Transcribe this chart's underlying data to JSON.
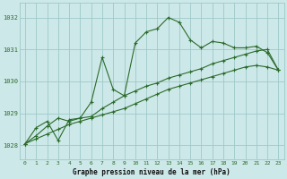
{
  "bg_color": "#cde8e8",
  "grid_color": "#9ec8c8",
  "line_color": "#2a6b2a",
  "title": "Graphe pression niveau de la mer (hPa)",
  "xlim": [
    -0.5,
    23.5
  ],
  "ylim": [
    1027.55,
    1032.45
  ],
  "yticks": [
    1028,
    1029,
    1030,
    1031,
    1032
  ],
  "xticks": [
    0,
    1,
    2,
    3,
    4,
    5,
    6,
    7,
    8,
    9,
    10,
    11,
    12,
    13,
    14,
    15,
    16,
    17,
    18,
    19,
    20,
    21,
    22,
    23
  ],
  "series1_x": [
    0,
    1,
    2,
    3,
    4,
    5,
    6,
    7,
    8,
    9,
    10,
    11,
    12,
    13,
    14,
    15,
    16,
    17,
    18,
    19,
    20,
    21,
    22,
    23
  ],
  "series1_y": [
    1028.05,
    1028.55,
    1028.75,
    1028.15,
    1028.8,
    1028.85,
    1029.35,
    1030.75,
    1029.75,
    1029.55,
    1031.2,
    1031.55,
    1031.65,
    1032.0,
    1031.85,
    1031.3,
    1031.05,
    1031.25,
    1031.2,
    1031.05,
    1031.05,
    1031.1,
    1030.9,
    1030.35
  ],
  "series2_x": [
    0,
    1,
    2,
    3,
    4,
    5,
    6,
    7,
    8,
    9,
    10,
    11,
    12,
    13,
    14,
    15,
    16,
    17,
    18,
    19,
    20,
    21,
    22,
    23
  ],
  "series2_y": [
    1028.05,
    1028.2,
    1028.35,
    1028.5,
    1028.65,
    1028.75,
    1028.85,
    1028.95,
    1029.05,
    1029.15,
    1029.3,
    1029.45,
    1029.6,
    1029.75,
    1029.85,
    1029.95,
    1030.05,
    1030.15,
    1030.25,
    1030.35,
    1030.45,
    1030.5,
    1030.45,
    1030.35
  ],
  "series3_x": [
    0,
    1,
    2,
    3,
    4,
    5,
    6,
    7,
    8,
    9,
    10,
    11,
    12,
    13,
    14,
    15,
    16,
    17,
    18,
    19,
    20,
    21,
    22,
    23
  ],
  "series3_y": [
    1028.05,
    1028.3,
    1028.6,
    1028.85,
    1028.75,
    1028.85,
    1028.9,
    1029.15,
    1029.35,
    1029.55,
    1029.7,
    1029.85,
    1029.95,
    1030.1,
    1030.2,
    1030.3,
    1030.4,
    1030.55,
    1030.65,
    1030.75,
    1030.85,
    1030.95,
    1031.0,
    1030.35
  ]
}
